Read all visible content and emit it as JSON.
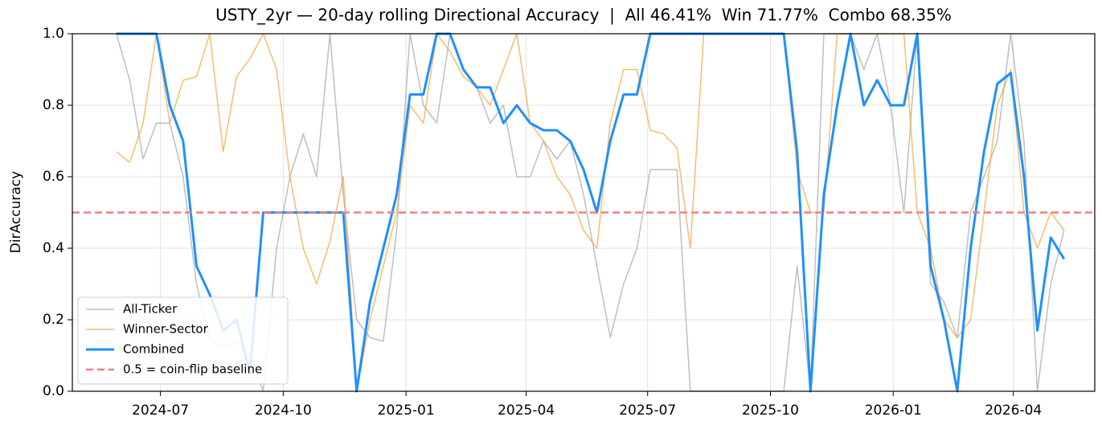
{
  "chart_data": {
    "type": "line",
    "title": "USTY_2yr — 20-day rolling Directional Accuracy  |  All 46.41%  Win 71.77%  Combo 68.35%",
    "ylabel": "DirAccuracy",
    "x": [
      "2024-05-29",
      "2024-06-08",
      "2024-06-18",
      "2024-06-28",
      "2024-07-08",
      "2024-07-18",
      "2024-07-28",
      "2024-08-07",
      "2024-08-17",
      "2024-08-27",
      "2024-09-06",
      "2024-09-16",
      "2024-09-26",
      "2024-10-06",
      "2024-10-16",
      "2024-10-26",
      "2024-11-05",
      "2024-11-15",
      "2024-11-25",
      "2024-12-05",
      "2024-12-15",
      "2024-12-25",
      "2025-01-04",
      "2025-01-14",
      "2025-01-24",
      "2025-02-03",
      "2025-02-13",
      "2025-02-23",
      "2025-03-05",
      "2025-03-15",
      "2025-03-25",
      "2025-04-04",
      "2025-04-14",
      "2025-04-24",
      "2025-05-04",
      "2025-05-14",
      "2025-05-24",
      "2025-06-03",
      "2025-06-13",
      "2025-06-23",
      "2025-07-03",
      "2025-07-13",
      "2025-07-23",
      "2025-08-02",
      "2025-08-12",
      "2025-08-22",
      "2025-09-01",
      "2025-09-11",
      "2025-09-21",
      "2025-10-01",
      "2025-10-11",
      "2025-10-21",
      "2025-10-31",
      "2025-11-10",
      "2025-11-20",
      "2025-11-30",
      "2025-12-10",
      "2025-12-20",
      "2025-12-30",
      "2026-01-09",
      "2026-01-19",
      "2026-01-29",
      "2026-02-08",
      "2026-02-18",
      "2026-02-28",
      "2026-03-10",
      "2026-03-20",
      "2026-03-30",
      "2026-04-09",
      "2026-04-19",
      "2026-04-29",
      "2026-05-09"
    ],
    "series": [
      {
        "name": "All-Ticker",
        "color": "#aaaaaa",
        "width": 1.5,
        "values": [
          1,
          0.87,
          0.65,
          0.75,
          0.75,
          0.6,
          0.3,
          0.15,
          0.12,
          0.14,
          0.1,
          0,
          0.4,
          0.6,
          0.72,
          0.6,
          1,
          0.55,
          0.2,
          0.15,
          0.14,
          0.45,
          1,
          0.8,
          0.75,
          1,
          0.9,
          0.85,
          0.75,
          0.8,
          0.6,
          0.6,
          0.7,
          0.65,
          0.7,
          0.55,
          0.35,
          0.15,
          0.3,
          0.4,
          0.62,
          0.62,
          0.62,
          0,
          0,
          0,
          0,
          0,
          0,
          0,
          0,
          0.35,
          0,
          1,
          1,
          1,
          0.9,
          1,
          0.8,
          0.5,
          1,
          0.3,
          0.25,
          0.15,
          0.5,
          0.6,
          0.7,
          1,
          0.7,
          0,
          0.3,
          0.45
        ]
      },
      {
        "name": "Winner-Sector",
        "color": "#f5a542",
        "width": 1.5,
        "values": [
          0.67,
          0.64,
          0.75,
          1,
          0.75,
          0.87,
          0.88,
          1,
          0.67,
          0.88,
          0.93,
          1,
          0.9,
          0.6,
          0.4,
          0.3,
          0.42,
          0.6,
          0,
          0.2,
          0.35,
          0.5,
          0.8,
          0.75,
          1,
          0.95,
          0.88,
          0.85,
          0.8,
          0.9,
          1,
          0.75,
          0.7,
          0.6,
          0.55,
          0.45,
          0.4,
          0.75,
          0.9,
          0.9,
          0.73,
          0.72,
          0.68,
          0.4,
          1,
          1,
          1,
          1,
          1,
          1,
          1,
          0.62,
          0.5,
          0.5,
          1,
          1,
          1,
          1,
          1,
          1,
          0.5,
          0.4,
          0.2,
          0.15,
          0.2,
          0.5,
          0.8,
          0.9,
          0.5,
          0.4,
          0.5,
          0.45
        ]
      },
      {
        "name": "Combined",
        "color": "#1e90ff",
        "width": 3,
        "values": [
          1,
          1,
          1,
          1,
          0.8,
          0.7,
          0.35,
          0.27,
          0.17,
          0.2,
          0.05,
          0.5,
          0.5,
          0.5,
          0.5,
          0.5,
          0.5,
          0.5,
          0,
          0.25,
          0.4,
          0.55,
          0.83,
          0.83,
          1,
          1,
          0.9,
          0.85,
          0.85,
          0.75,
          0.8,
          0.75,
          0.73,
          0.73,
          0.7,
          0.62,
          0.5,
          0.7,
          0.83,
          0.83,
          1,
          1,
          1,
          1,
          1,
          1,
          1,
          1,
          1,
          1,
          1,
          0.67,
          0,
          0.55,
          0.8,
          1,
          0.8,
          0.87,
          0.8,
          0.8,
          1,
          0.35,
          0.2,
          0,
          0.4,
          0.67,
          0.86,
          0.89,
          0.6,
          0.17,
          0.43,
          0.37
        ]
      }
    ],
    "baseline": {
      "value": 0.5,
      "label": "0.5 = coin-flip baseline",
      "color": "#f08080"
    },
    "xlim": [
      "2024-04-26",
      "2026-06-01"
    ],
    "xticks": [
      {
        "value": "2024-07-01",
        "label": "2024-07"
      },
      {
        "value": "2024-10-01",
        "label": "2024-10"
      },
      {
        "value": "2025-01-01",
        "label": "2025-01"
      },
      {
        "value": "2025-04-01",
        "label": "2025-04"
      },
      {
        "value": "2025-07-01",
        "label": "2025-07"
      },
      {
        "value": "2025-10-01",
        "label": "2025-10"
      },
      {
        "value": "2026-01-01",
        "label": "2026-01"
      },
      {
        "value": "2026-04-01",
        "label": "2026-04"
      }
    ],
    "ylim": [
      0,
      1
    ],
    "yticks": [
      {
        "value": 0,
        "label": "0.0"
      },
      0.2,
      0.4,
      0.6,
      0.8,
      {
        "value": 1,
        "label": "1.0"
      }
    ],
    "grid": true,
    "legend": "lower left"
  }
}
